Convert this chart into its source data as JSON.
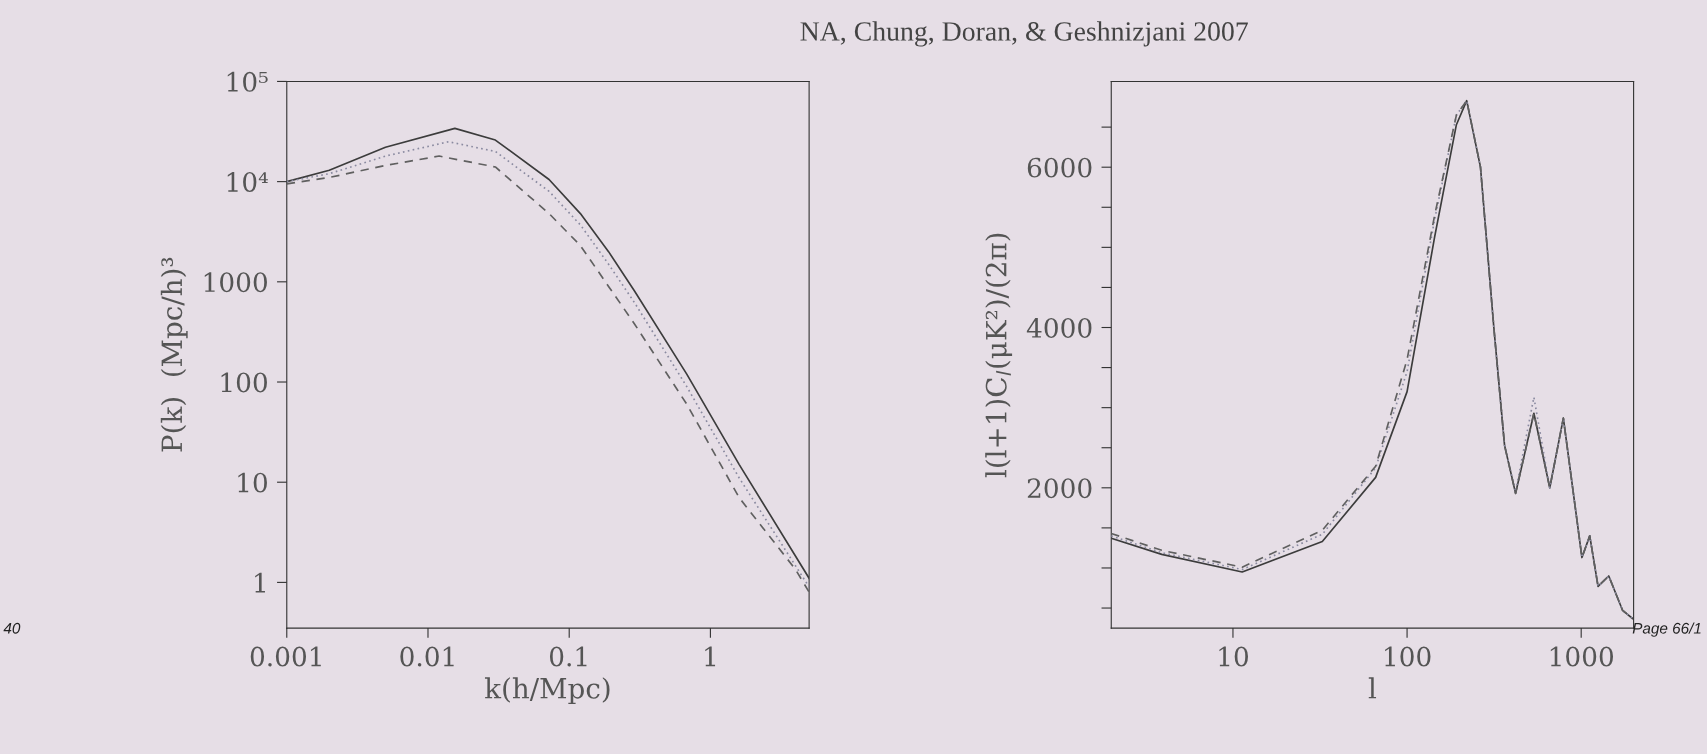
{
  "chart_data": [
    {
      "type": "line",
      "title": "NA, Chung, Doran, & Geshnizjani 2007",
      "xlabel": "k(h/Mpc)",
      "ylabel": "P(k)  (Mpc/h)³",
      "log": "xy",
      "xlim": [
        0.001,
        5
      ],
      "ylim": [
        0.35,
        100000
      ],
      "xticks": [
        0.001,
        0.01,
        0.1,
        1
      ],
      "yticks": [
        1,
        10,
        100,
        1000,
        {
          "value": 10000,
          "label": "10⁴"
        },
        {
          "value": 100000,
          "label": "10⁵"
        }
      ],
      "grid": false,
      "legend": false,
      "annotations": [
        "40"
      ],
      "series": [
        {
          "color": "#3c3c3c",
          "line_style": "solid",
          "x": [
            0.001,
            0.002,
            0.005,
            0.0155,
            0.03,
            0.072,
            0.12,
            0.19,
            0.29,
            0.68,
            1.6,
            5
          ],
          "values": [
            10000,
            13000,
            22000,
            34000,
            26000,
            10500,
            4800,
            2000,
            810,
            120,
            15,
            1.1
          ]
        },
        {
          "color": "#8a8aa0",
          "line_style": "dotted",
          "x": [
            0.001,
            0.002,
            0.005,
            0.014,
            0.03,
            0.072,
            0.12,
            0.19,
            0.29,
            0.68,
            1.6,
            5
          ],
          "values": [
            10000,
            12000,
            18000,
            25000,
            20000,
            8000,
            3700,
            1500,
            620,
            90,
            11,
            0.9
          ]
        },
        {
          "color": "#606060",
          "line_style": "dashed",
          "x": [
            0.001,
            0.002,
            0.005,
            0.012,
            0.03,
            0.072,
            0.12,
            0.19,
            0.29,
            0.68,
            1.6,
            4,
            5
          ],
          "values": [
            9500,
            11000,
            14500,
            18000,
            14000,
            4800,
            2300,
            900,
            380,
            60,
            7,
            1.35,
            0.8
          ]
        }
      ]
    },
    {
      "type": "line",
      "xlabel": "l",
      "ylabel": "l(l+1)C$_{l}$(μK²)/(2π)",
      "log": "x",
      "xlim": [
        2,
        2000
      ],
      "ylim": [
        250,
        7070
      ],
      "xticks": [
        10,
        100,
        1000
      ],
      "yticks": [
        {
          "value": 500,
          "label": null
        },
        {
          "value": 1000,
          "label": null
        },
        {
          "value": 1500,
          "label": null
        },
        2000,
        {
          "value": 2500,
          "label": null
        },
        {
          "value": 3000,
          "label": null
        },
        {
          "value": 3500,
          "label": null
        },
        4000,
        {
          "value": 4500,
          "label": null
        },
        {
          "value": 5000,
          "label": null
        },
        {
          "value": 5500,
          "label": null
        },
        6000,
        {
          "value": 6500,
          "label": null
        }
      ],
      "grid": false,
      "legend": false,
      "annotations": [
        "Page 66/1"
      ],
      "series": [
        {
          "color": "#3c3c3c",
          "line_style": "solid",
          "x": [
            2,
            3.9,
            11.3,
            32.6,
            66,
            100,
            144,
            192,
            220,
            264,
            315,
            363,
            420,
            535,
            660,
            790,
            1010,
            1120,
            1250,
            1440,
            1730,
            1970
          ],
          "values": [
            1370,
            1170,
            950,
            1330,
            2130,
            3200,
            5130,
            6530,
            6830,
            6000,
            4000,
            2530,
            1930,
            2930,
            2000,
            2870,
            1130,
            1400,
            770,
            900,
            470,
            370
          ]
        },
        {
          "color": "#8a8aa0",
          "line_style": "dotted",
          "x": [
            2,
            3.9,
            11.3,
            32.6,
            66,
            100,
            144,
            192,
            220,
            264,
            315,
            363,
            420,
            535,
            660,
            790,
            1010,
            1120,
            1250,
            1440,
            1730,
            1970
          ],
          "values": [
            1400,
            1190,
            980,
            1420,
            2250,
            3450,
            5350,
            6650,
            6830,
            6000,
            4000,
            2530,
            1950,
            3130,
            2000,
            2870,
            1130,
            1400,
            770,
            900,
            470,
            370
          ]
        },
        {
          "color": "#606060",
          "line_style": "dashed",
          "x": [
            2,
            3.9,
            11.3,
            32.6,
            66,
            100,
            144,
            192,
            220,
            264,
            315,
            363,
            420,
            535,
            660,
            790,
            1010,
            1120,
            1250,
            1440,
            1730,
            1970
          ],
          "values": [
            1430,
            1220,
            1010,
            1470,
            2270,
            3600,
            5400,
            6650,
            6830,
            6000,
            4000,
            2530,
            1930,
            2930,
            2000,
            2870,
            1130,
            1400,
            770,
            900,
            470,
            370
          ]
        }
      ]
    }
  ]
}
